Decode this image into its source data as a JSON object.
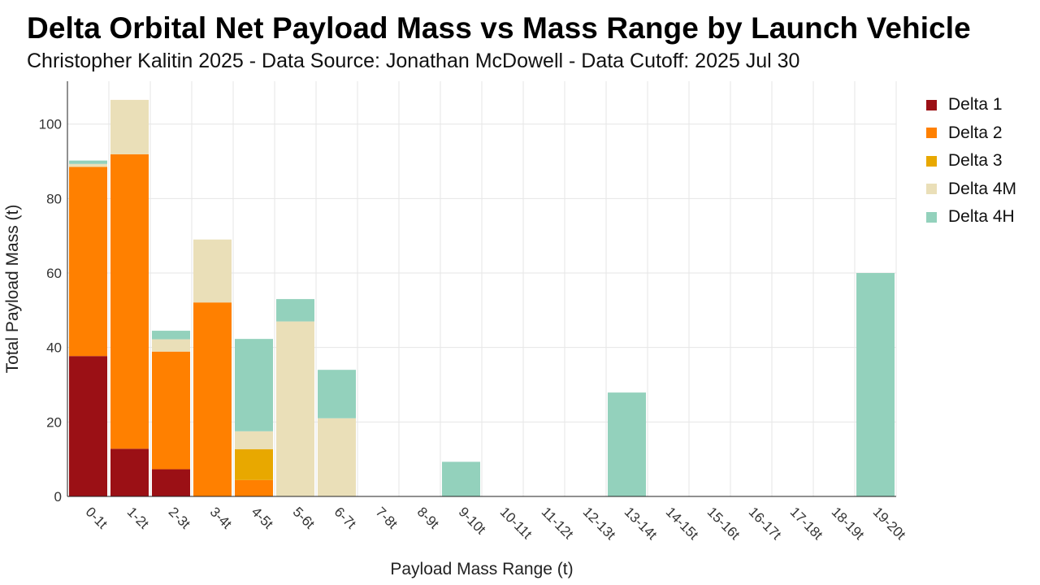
{
  "title": "Delta Orbital Net Payload Mass vs Mass Range by Launch Vehicle",
  "subtitle": "Christopher Kalitin 2025 - Data Source: Jonathan McDowell - Data Cutoff: 2025 Jul 30",
  "chart_data": {
    "type": "bar",
    "stacked": true,
    "xlabel": "Payload Mass Range (t)",
    "ylabel": "Total Payload Mass (t)",
    "ylim": [
      0,
      111.5
    ],
    "yticks": [
      0,
      20,
      40,
      60,
      80,
      100
    ],
    "grid": true,
    "legend_position": "right",
    "categories": [
      "0-1t",
      "1-2t",
      "2-3t",
      "3-4t",
      "4-5t",
      "5-6t",
      "6-7t",
      "7-8t",
      "8-9t",
      "9-10t",
      "10-11t",
      "11-12t",
      "12-13t",
      "13-14t",
      "14-15t",
      "15-16t",
      "16-17t",
      "17-18t",
      "18-19t",
      "19-20t"
    ],
    "series": [
      {
        "name": "Delta 1",
        "color": "#9b1015",
        "values": [
          37.7,
          12.8,
          7.3,
          0,
          0,
          0,
          0,
          0,
          0,
          0,
          0,
          0,
          0,
          0,
          0,
          0,
          0,
          0,
          0,
          0
        ]
      },
      {
        "name": "Delta 2",
        "color": "#ff8000",
        "values": [
          50.8,
          79.1,
          31.6,
          52.1,
          4.4,
          0,
          0,
          0,
          0,
          0,
          0,
          0,
          0,
          0,
          0,
          0,
          0,
          0,
          0,
          0
        ]
      },
      {
        "name": "Delta 3",
        "color": "#e8a800",
        "values": [
          0,
          0,
          0,
          0,
          8.3,
          0,
          0,
          0,
          0,
          0,
          0,
          0,
          0,
          0,
          0,
          0,
          0,
          0,
          0,
          0
        ]
      },
      {
        "name": "Delta 4M",
        "color": "#eadfb8",
        "values": [
          0.8,
          14.6,
          3.3,
          16.9,
          4.8,
          47.0,
          21.0,
          0,
          0,
          0,
          0,
          0,
          0,
          0,
          0,
          0,
          0,
          0,
          0,
          0
        ]
      },
      {
        "name": "Delta 4H",
        "color": "#93d1bc",
        "values": [
          0.9,
          0,
          2.3,
          0,
          24.8,
          6.0,
          13.0,
          0,
          0,
          9.3,
          0,
          0,
          0,
          27.9,
          0,
          0,
          0,
          0,
          0,
          60.0
        ]
      }
    ]
  }
}
